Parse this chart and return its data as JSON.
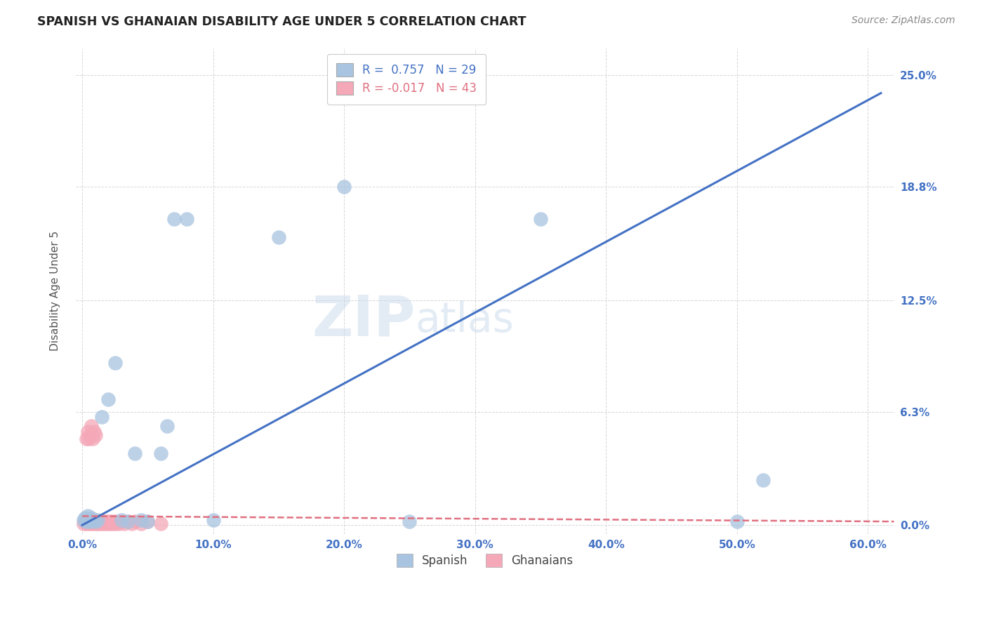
{
  "title": "SPANISH VS GHANAIAN DISABILITY AGE UNDER 5 CORRELATION CHART",
  "source": "Source: ZipAtlas.com",
  "ylabel": "Disability Age Under 5",
  "xlabel_ticks": [
    "0.0%",
    "10.0%",
    "20.0%",
    "30.0%",
    "40.0%",
    "50.0%",
    "60.0%"
  ],
  "xlabel_vals": [
    0.0,
    0.1,
    0.2,
    0.3,
    0.4,
    0.5,
    0.6
  ],
  "ylabel_ticks": [
    "0.0%",
    "6.3%",
    "12.5%",
    "18.8%",
    "25.0%"
  ],
  "ylabel_vals": [
    0.0,
    0.063,
    0.125,
    0.188,
    0.25
  ],
  "xlim": [
    -0.005,
    0.62
  ],
  "ylim": [
    -0.005,
    0.265
  ],
  "spanish_R": 0.757,
  "spanish_N": 29,
  "ghanaian_R": -0.017,
  "ghanaian_N": 43,
  "spanish_color": "#a8c4e0",
  "ghanaian_color": "#f4a8b8",
  "spanish_line_color": "#4472c4",
  "ghanaian_line_color": "#e07080",
  "background_color": "#ffffff",
  "watermark_zip": "ZIP",
  "watermark_atlas": "atlas",
  "spanish_x": [
    0.001,
    0.002,
    0.003,
    0.004,
    0.005,
    0.006,
    0.007,
    0.008,
    0.01,
    0.012,
    0.015,
    0.02,
    0.025,
    0.03,
    0.035,
    0.04,
    0.045,
    0.05,
    0.06,
    0.065,
    0.07,
    0.08,
    0.1,
    0.15,
    0.2,
    0.25,
    0.35,
    0.5,
    0.52
  ],
  "spanish_y": [
    0.003,
    0.004,
    0.002,
    0.005,
    0.003,
    0.002,
    0.004,
    0.003,
    0.002,
    0.003,
    0.06,
    0.07,
    0.09,
    0.003,
    0.002,
    0.04,
    0.003,
    0.002,
    0.04,
    0.055,
    0.17,
    0.17,
    0.003,
    0.16,
    0.188,
    0.002,
    0.17,
    0.002,
    0.025
  ],
  "ghanaian_x": [
    0.001,
    0.002,
    0.003,
    0.004,
    0.005,
    0.006,
    0.007,
    0.008,
    0.009,
    0.01,
    0.011,
    0.012,
    0.013,
    0.014,
    0.015,
    0.016,
    0.017,
    0.018,
    0.019,
    0.02,
    0.021,
    0.022,
    0.023,
    0.024,
    0.025,
    0.026,
    0.028,
    0.03,
    0.032,
    0.035,
    0.038,
    0.04,
    0.045,
    0.05,
    0.06,
    0.007,
    0.008,
    0.009,
    0.01,
    0.005,
    0.004,
    0.006,
    0.003
  ],
  "ghanaian_y": [
    0.001,
    0.002,
    0.001,
    0.002,
    0.001,
    0.002,
    0.001,
    0.002,
    0.001,
    0.002,
    0.001,
    0.002,
    0.001,
    0.002,
    0.001,
    0.002,
    0.001,
    0.002,
    0.001,
    0.002,
    0.001,
    0.002,
    0.001,
    0.002,
    0.001,
    0.002,
    0.001,
    0.002,
    0.001,
    0.002,
    0.001,
    0.002,
    0.001,
    0.002,
    0.001,
    0.055,
    0.048,
    0.052,
    0.05,
    0.048,
    0.052,
    0.05,
    0.048
  ]
}
